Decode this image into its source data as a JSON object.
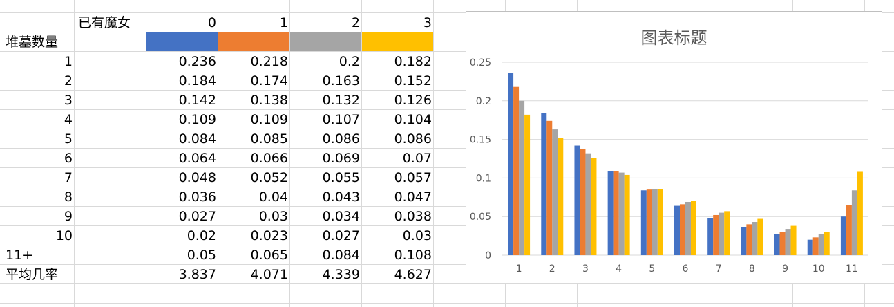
{
  "sheet": {
    "header_label": "已有魔女",
    "row_header_label": "堆墓数量",
    "series_headers": [
      "0",
      "1",
      "2",
      "3"
    ],
    "rows": [
      {
        "label": "1",
        "values": [
          "0.236",
          "0.218",
          "0.2",
          "0.182"
        ]
      },
      {
        "label": "2",
        "values": [
          "0.184",
          "0.174",
          "0.163",
          "0.152"
        ]
      },
      {
        "label": "3",
        "values": [
          "0.142",
          "0.138",
          "0.132",
          "0.126"
        ]
      },
      {
        "label": "4",
        "values": [
          "0.109",
          "0.109",
          "0.107",
          "0.104"
        ]
      },
      {
        "label": "5",
        "values": [
          "0.084",
          "0.085",
          "0.086",
          "0.086"
        ]
      },
      {
        "label": "6",
        "values": [
          "0.064",
          "0.066",
          "0.069",
          "0.07"
        ]
      },
      {
        "label": "7",
        "values": [
          "0.048",
          "0.052",
          "0.055",
          "0.057"
        ]
      },
      {
        "label": "8",
        "values": [
          "0.036",
          "0.04",
          "0.043",
          "0.047"
        ]
      },
      {
        "label": "9",
        "values": [
          "0.027",
          "0.03",
          "0.034",
          "0.038"
        ]
      },
      {
        "label": "10",
        "values": [
          "0.02",
          "0.023",
          "0.027",
          "0.03"
        ]
      },
      {
        "label": "11+",
        "values": [
          "0.05",
          "0.065",
          "0.084",
          "0.108"
        ]
      },
      {
        "label": "平均几率",
        "values": [
          "3.837",
          "4.071",
          "4.339",
          "4.627"
        ]
      }
    ]
  },
  "colors": {
    "series": [
      "#4472c4",
      "#ed7d31",
      "#a5a5a5",
      "#ffc000"
    ],
    "grid": "#d9d9d9",
    "chart_text": "#595959"
  },
  "chart_data": {
    "type": "bar",
    "title": "图表标题",
    "xlabel": "",
    "ylabel": "",
    "categories": [
      "1",
      "2",
      "3",
      "4",
      "5",
      "6",
      "7",
      "8",
      "9",
      "10",
      "11"
    ],
    "series": [
      {
        "values": [
          0.236,
          0.184,
          0.142,
          0.109,
          0.084,
          0.064,
          0.048,
          0.036,
          0.027,
          0.02,
          0.05
        ]
      },
      {
        "values": [
          0.218,
          0.174,
          0.138,
          0.109,
          0.085,
          0.066,
          0.052,
          0.04,
          0.03,
          0.023,
          0.065
        ]
      },
      {
        "values": [
          0.2,
          0.163,
          0.132,
          0.107,
          0.086,
          0.069,
          0.055,
          0.043,
          0.034,
          0.027,
          0.084
        ]
      },
      {
        "values": [
          0.182,
          0.152,
          0.126,
          0.104,
          0.086,
          0.07,
          0.057,
          0.047,
          0.038,
          0.03,
          0.108
        ]
      }
    ],
    "ylim": [
      0,
      0.25
    ],
    "yticks": [
      "0",
      "0.05",
      "0.1",
      "0.15",
      "0.2",
      "0.25"
    ],
    "grid": true,
    "legend": "none"
  }
}
